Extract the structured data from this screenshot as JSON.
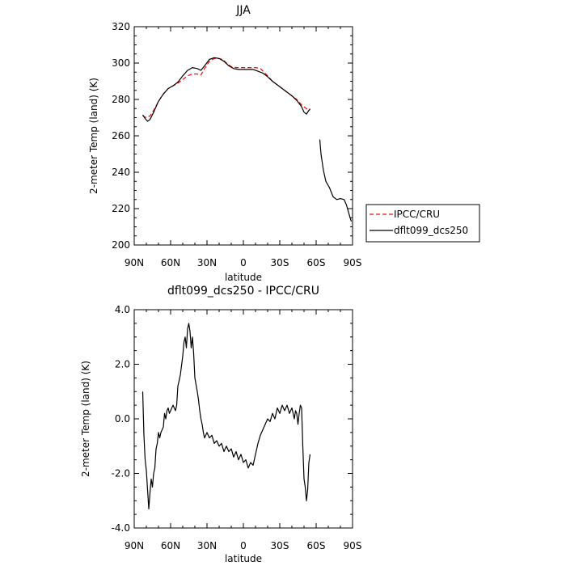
{
  "chart_data": [
    {
      "type": "line",
      "title": "JJA",
      "xlabel": "latitude",
      "ylabel": "2-meter Temp (land) (K)",
      "xlim": [
        90,
        -90
      ],
      "ylim": [
        200,
        320
      ],
      "x_ticks": [
        90,
        60,
        30,
        0,
        -30,
        -60,
        -90
      ],
      "x_tick_labels": [
        "90N",
        "60N",
        "30N",
        "0",
        "30S",
        "60S",
        "90S"
      ],
      "y_ticks": [
        200,
        220,
        240,
        260,
        280,
        300,
        320
      ],
      "y_tick_labels": [
        "200",
        "220",
        "240",
        "260",
        "280",
        "300",
        "320"
      ],
      "legend": {
        "placement": "outside-right"
      },
      "series": [
        {
          "name": "IPCC/CRU",
          "color": "#ff0000",
          "style": "dashed",
          "segments": [
            [
              [
                83,
                271
              ],
              [
                80,
                270
              ],
              [
                77,
                271
              ],
              [
                74,
                274
              ],
              [
                70,
                279
              ],
              [
                66,
                283
              ],
              [
                62,
                286
              ],
              [
                58,
                287.5
              ],
              [
                54,
                289
              ],
              [
                50,
                291
              ],
              [
                46,
                293
              ],
              [
                42,
                294
              ],
              [
                38,
                294
              ],
              [
                35,
                293.5
              ],
              [
                32,
                297
              ],
              [
                28,
                301
              ],
              [
                24,
                302.5
              ],
              [
                20,
                302.5
              ],
              [
                17,
                302
              ],
              [
                14,
                300
              ],
              [
                10,
                298
              ],
              [
                6,
                297.5
              ],
              [
                2,
                297.5
              ],
              [
                -2,
                297.5
              ],
              [
                -6,
                297.5
              ],
              [
                -10,
                297.5
              ],
              [
                -14,
                297
              ],
              [
                -17,
                295
              ],
              [
                -20,
                293
              ],
              [
                -24,
                290
              ],
              [
                -28,
                288
              ],
              [
                -32,
                286
              ],
              [
                -36,
                284
              ],
              [
                -40,
                282
              ],
              [
                -44,
                280
              ],
              [
                -48,
                277
              ],
              [
                -52,
                275
              ],
              [
                -54,
                274
              ],
              [
                -55,
                275
              ]
            ]
          ]
        },
        {
          "name": "dflt099_dcs250",
          "color": "#000000",
          "style": "solid",
          "segments": [
            [
              [
                83,
                271.5
              ],
              [
                81,
                269.5
              ],
              [
                79,
                268
              ],
              [
                77,
                269
              ],
              [
                74,
                273
              ],
              [
                70,
                279
              ],
              [
                66,
                283
              ],
              [
                62,
                286
              ],
              [
                58,
                287.5
              ],
              [
                54,
                289.5
              ],
              [
                50,
                293
              ],
              [
                46,
                296
              ],
              [
                42,
                297.5
              ],
              [
                38,
                297
              ],
              [
                35,
                296
              ],
              [
                32,
                298.5
              ],
              [
                28,
                302
              ],
              [
                24,
                303
              ],
              [
                20,
                302.5
              ],
              [
                16,
                301
              ],
              [
                12,
                298.5
              ],
              [
                8,
                297
              ],
              [
                4,
                296.5
              ],
              [
                0,
                296.5
              ],
              [
                -4,
                296.5
              ],
              [
                -8,
                296.5
              ],
              [
                -12,
                295.5
              ],
              [
                -16,
                294.5
              ],
              [
                -20,
                292.5
              ],
              [
                -24,
                290
              ],
              [
                -28,
                288
              ],
              [
                -32,
                286
              ],
              [
                -36,
                284
              ],
              [
                -40,
                282
              ],
              [
                -44,
                279.5
              ],
              [
                -48,
                276
              ],
              [
                -50,
                273
              ],
              [
                -52,
                272
              ],
              [
                -54,
                274
              ],
              [
                -55,
                274.5
              ]
            ],
            [
              [
                -63,
                258
              ],
              [
                -64,
                250
              ],
              [
                -66,
                241
              ],
              [
                -68,
                235
              ],
              [
                -71,
                231.5
              ],
              [
                -74,
                226.5
              ],
              [
                -77,
                225
              ],
              [
                -80,
                225.5
              ],
              [
                -83,
                225
              ],
              [
                -85,
                222
              ],
              [
                -88,
                215
              ],
              [
                -89,
                213
              ]
            ]
          ]
        }
      ]
    },
    {
      "type": "line",
      "title": "dflt099_dcs250 - IPCC/CRU",
      "xlabel": "latitude",
      "ylabel": "2-meter Temp (land) (K)",
      "xlim": [
        90,
        -90
      ],
      "ylim": [
        -4.0,
        4.0
      ],
      "x_ticks": [
        90,
        60,
        30,
        0,
        -30,
        -60,
        -90
      ],
      "x_tick_labels": [
        "90N",
        "60N",
        "30N",
        "0",
        "30S",
        "60S",
        "90S"
      ],
      "y_ticks": [
        -4,
        -2,
        0,
        2,
        4
      ],
      "y_tick_labels": [
        "-4.0",
        "-2.0",
        "0.0",
        "2.0",
        "4.0"
      ],
      "series": [
        {
          "name": "dflt099_dcs250",
          "color": "#000000",
          "style": "solid",
          "values": [
            [
              83,
              1.0
            ],
            [
              82,
              -0.6
            ],
            [
              81,
              -1.5
            ],
            [
              80,
              -1.9
            ],
            [
              79,
              -2.6
            ],
            [
              78,
              -3.3
            ],
            [
              77,
              -2.7
            ],
            [
              76,
              -2.2
            ],
            [
              75,
              -2.5
            ],
            [
              74,
              -2.0
            ],
            [
              73,
              -1.8
            ],
            [
              72,
              -1.1
            ],
            [
              71,
              -0.9
            ],
            [
              70,
              -0.5
            ],
            [
              69,
              -0.7
            ],
            [
              68,
              -0.5
            ],
            [
              66,
              -0.3
            ],
            [
              65,
              0.2
            ],
            [
              64,
              0.0
            ],
            [
              63,
              0.3
            ],
            [
              62,
              0.4
            ],
            [
              61,
              0.2
            ],
            [
              60,
              0.3
            ],
            [
              58,
              0.5
            ],
            [
              56,
              0.3
            ],
            [
              55,
              0.5
            ],
            [
              54,
              1.2
            ],
            [
              52,
              1.6
            ],
            [
              50,
              2.3
            ],
            [
              49,
              2.8
            ],
            [
              48,
              3.0
            ],
            [
              47,
              2.6
            ],
            [
              46,
              3.3
            ],
            [
              45,
              3.5
            ],
            [
              44,
              3.2
            ],
            [
              43,
              2.6
            ],
            [
              42,
              3.0
            ],
            [
              41,
              2.4
            ],
            [
              40,
              1.5
            ],
            [
              38,
              1.0
            ],
            [
              37,
              0.7
            ],
            [
              36,
              0.3
            ],
            [
              35,
              0.0
            ],
            [
              34,
              -0.2
            ],
            [
              33,
              -0.5
            ],
            [
              32,
              -0.7
            ],
            [
              31,
              -0.6
            ],
            [
              30,
              -0.5
            ],
            [
              28,
              -0.7
            ],
            [
              26,
              -0.6
            ],
            [
              24,
              -0.9
            ],
            [
              22,
              -0.8
            ],
            [
              20,
              -1.0
            ],
            [
              18,
              -0.9
            ],
            [
              16,
              -1.2
            ],
            [
              14,
              -1.0
            ],
            [
              12,
              -1.2
            ],
            [
              10,
              -1.1
            ],
            [
              8,
              -1.4
            ],
            [
              6,
              -1.2
            ],
            [
              4,
              -1.5
            ],
            [
              2,
              -1.3
            ],
            [
              0,
              -1.6
            ],
            [
              -2,
              -1.5
            ],
            [
              -4,
              -1.8
            ],
            [
              -6,
              -1.6
            ],
            [
              -8,
              -1.7
            ],
            [
              -10,
              -1.3
            ],
            [
              -12,
              -0.9
            ],
            [
              -14,
              -0.6
            ],
            [
              -16,
              -0.4
            ],
            [
              -18,
              -0.2
            ],
            [
              -20,
              0.0
            ],
            [
              -22,
              -0.1
            ],
            [
              -24,
              0.2
            ],
            [
              -26,
              0.0
            ],
            [
              -28,
              0.4
            ],
            [
              -30,
              0.2
            ],
            [
              -32,
              0.5
            ],
            [
              -34,
              0.3
            ],
            [
              -36,
              0.5
            ],
            [
              -38,
              0.2
            ],
            [
              -40,
              0.4
            ],
            [
              -42,
              0.0
            ],
            [
              -43,
              0.3
            ],
            [
              -44,
              0.2
            ],
            [
              -45,
              -0.2
            ],
            [
              -46,
              0.2
            ],
            [
              -47,
              0.5
            ],
            [
              -48,
              0.4
            ],
            [
              -49,
              -1.0
            ],
            [
              -50,
              -2.2
            ],
            [
              -51,
              -2.5
            ],
            [
              -52,
              -3.0
            ],
            [
              -53,
              -2.6
            ],
            [
              -54,
              -1.6
            ],
            [
              -55,
              -1.3
            ]
          ]
        }
      ]
    }
  ]
}
